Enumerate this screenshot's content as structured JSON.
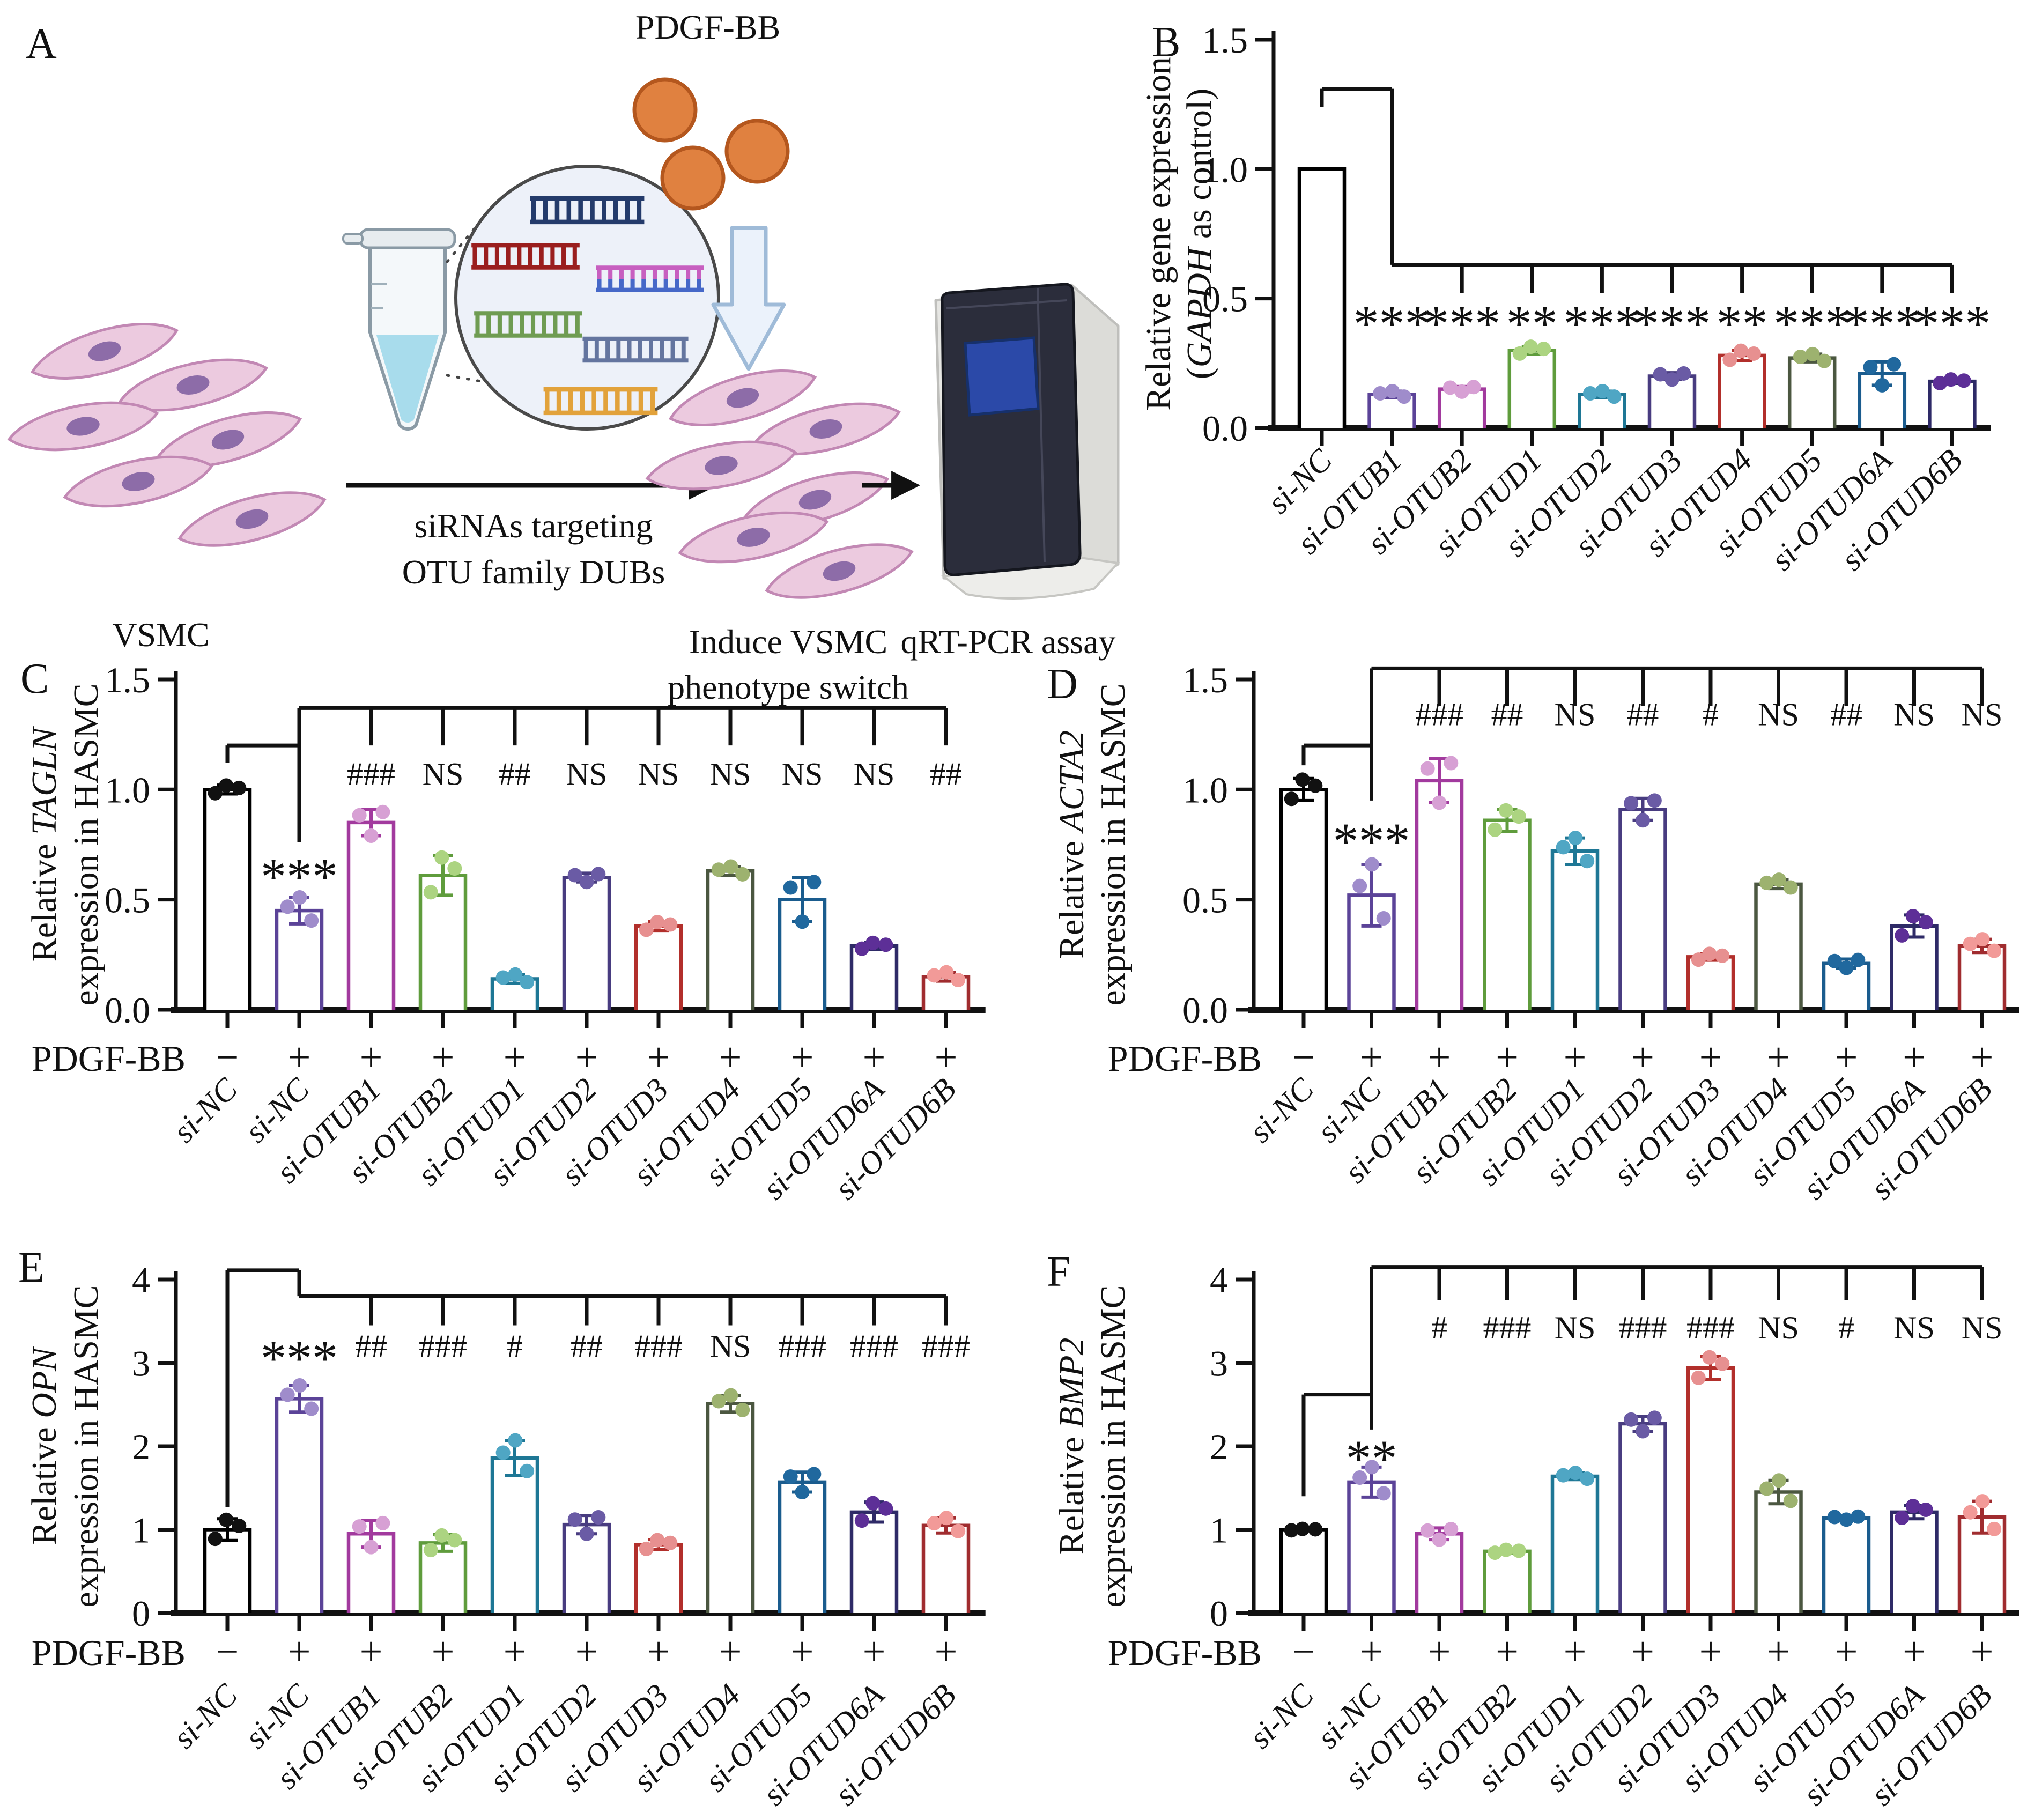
{
  "panel_letters": {
    "A": "A",
    "B": "B",
    "C": "C",
    "D": "D",
    "E": "E",
    "F": "F"
  },
  "panel_a": {
    "pdgf_label": "PDGF-BB",
    "vsmc_label": "VSMC",
    "sirna_line1": "siRNAs targeting",
    "sirna_line2": "OTU family DUBs",
    "induce_line1": "Induce VSMC",
    "induce_line2": "phenotype switch",
    "machine_caption": "qRT-PCR assay"
  },
  "palette": {
    "black": {
      "bar": "#000000",
      "pt": "#111111"
    },
    "purple": {
      "bar": "#5B4398",
      "pt": "#9F8CCB"
    },
    "magenta": {
      "bar": "#A23A9E",
      "pt": "#D7A0D4"
    },
    "green": {
      "bar": "#5F9C3C",
      "pt": "#ACD481"
    },
    "teal": {
      "bar": "#1E7795",
      "pt": "#4FA6C4"
    },
    "violet": {
      "bar": "#483C80",
      "pt": "#6A5BA5"
    },
    "red": {
      "bar": "#B22F2B",
      "pt": "#E79090"
    },
    "olive": {
      "bar": "#4B5740",
      "pt": "#9DB26F"
    },
    "steel": {
      "bar": "#1A5C8E",
      "pt": "#20689E"
    },
    "indigo": {
      "bar": "#2E2A67",
      "pt": "#5D2F97"
    },
    "maroon": {
      "bar": "#A02C2F",
      "pt": "#F29A98"
    }
  },
  "chart_data": [
    {
      "panel": "B",
      "type": "bar",
      "title": "Relative gene expression (GAPDH as control)",
      "ylabel_lines": [
        [
          {
            "t": "Relative gene expression"
          }
        ],
        [
          {
            "t": "("
          },
          {
            "t": "GAPDH",
            "i": true
          },
          {
            "t": " as control)"
          }
        ]
      ],
      "ylim": [
        0,
        1.5
      ],
      "yticks": [
        "0.0",
        "0.5",
        "1.0",
        "1.5"
      ],
      "categories": [
        "si-NC",
        "si-OTUB1",
        "si-OTUB2",
        "si-OTUD1",
        "si-OTUD2",
        "si-OTUD3",
        "si-OTUD4",
        "si-OTUD5",
        "si-OTUD6A",
        "si-OTUD6B"
      ],
      "values": [
        1.0,
        0.13,
        0.15,
        0.3,
        0.13,
        0.2,
        0.28,
        0.27,
        0.21,
        0.18
      ],
      "errors": [
        0,
        0.012,
        0.01,
        0.015,
        0.012,
        0.013,
        0.02,
        0.015,
        0.045,
        0.008
      ],
      "colors": [
        "black",
        "purple",
        "magenta",
        "green",
        "teal",
        "violet",
        "red",
        "olive",
        "steel",
        "indigo"
      ],
      "first_bar_points": false,
      "pdgf_signs": null,
      "sig": [
        null,
        {
          "t": "***",
          "y": 0.45
        },
        {
          "t": "***",
          "y": 0.45
        },
        {
          "t": "**",
          "y": 0.45
        },
        {
          "t": "***",
          "y": 0.45
        },
        {
          "t": "***",
          "y": 0.45
        },
        {
          "t": "**",
          "y": 0.45
        },
        {
          "t": "***",
          "y": 0.45
        },
        {
          "t": "***",
          "y": 0.45
        },
        {
          "t": "***",
          "y": 0.45
        }
      ],
      "bracket": [
        {
          "type": "v",
          "cat": 0,
          "y0": 1.24,
          "y1": 1.31
        },
        {
          "type": "h",
          "y": 1.31,
          "c0": 0,
          "c1": 1
        },
        {
          "type": "v",
          "cat": 1,
          "y0": 0.63,
          "y1": 1.31
        },
        {
          "type": "h",
          "y": 0.63,
          "c0": 1,
          "c1": 9
        },
        {
          "type": "vticks",
          "cats": [
            2,
            3,
            4,
            5,
            6,
            7,
            8,
            9
          ],
          "y0": 0.52,
          "y1": 0.63
        }
      ]
    },
    {
      "panel": "C",
      "type": "bar",
      "title": "Relative TAGLN expression in HASMC",
      "ylabel_lines": [
        [
          {
            "t": "Relative "
          },
          {
            "t": "TAGLN",
            "i": true
          }
        ],
        [
          {
            "t": "expression in HASMC"
          }
        ]
      ],
      "ylim": [
        0,
        1.5
      ],
      "yticks": [
        "0.0",
        "0.5",
        "1.0",
        "1.5"
      ],
      "categories": [
        "si-NC",
        "si-NC",
        "si-OTUB1",
        "si-OTUB2",
        "si-OTUD1",
        "si-OTUD2",
        "si-OTUD3",
        "si-OTUD4",
        "si-OTUD5",
        "si-OTUD6A",
        "si-OTUD6B"
      ],
      "values": [
        1.0,
        0.45,
        0.85,
        0.61,
        0.14,
        0.6,
        0.38,
        0.63,
        0.5,
        0.29,
        0.15
      ],
      "errors": [
        0.02,
        0.06,
        0.06,
        0.09,
        0.02,
        0.02,
        0.02,
        0.02,
        0.1,
        0.015,
        0.02
      ],
      "colors": [
        "black",
        "purple",
        "magenta",
        "green",
        "teal",
        "violet",
        "red",
        "olive",
        "steel",
        "indigo",
        "maroon"
      ],
      "pdgf_label": "PDGF-BB",
      "pdgf_signs": [
        "−",
        "+",
        "+",
        "+",
        "+",
        "+",
        "+",
        "+",
        "+",
        "+",
        "+"
      ],
      "sig": [
        null,
        {
          "t": "***",
          "y": 0.66
        },
        {
          "t": "###",
          "y": 1.07
        },
        {
          "t": "NS",
          "y": 1.07
        },
        {
          "t": "##",
          "y": 1.07
        },
        {
          "t": "NS",
          "y": 1.07
        },
        {
          "t": "NS",
          "y": 1.07
        },
        {
          "t": "NS",
          "y": 1.07
        },
        {
          "t": "NS",
          "y": 1.07
        },
        {
          "t": "NS",
          "y": 1.07
        },
        {
          "t": "##",
          "y": 1.07
        }
      ],
      "bracket": [
        {
          "type": "v",
          "cat": 0,
          "y0": 1.12,
          "y1": 1.2
        },
        {
          "type": "h",
          "y": 1.2,
          "c0": 0,
          "c1": 1
        },
        {
          "type": "v",
          "cat": 1,
          "y0": 0.76,
          "y1": 1.37
        },
        {
          "type": "h",
          "y": 1.37,
          "c0": 1,
          "c1": 10
        },
        {
          "type": "vticks",
          "cats": [
            2,
            3,
            4,
            5,
            6,
            7,
            8,
            9,
            10
          ],
          "y0": 1.2,
          "y1": 1.37
        }
      ]
    },
    {
      "panel": "D",
      "type": "bar",
      "title": "Relative ACTA2 expression in HASMC",
      "ylabel_lines": [
        [
          {
            "t": "Relative "
          },
          {
            "t": "ACTA2",
            "i": true
          }
        ],
        [
          {
            "t": "expression in HASMC"
          }
        ]
      ],
      "ylim": [
        0,
        1.5
      ],
      "yticks": [
        "0.0",
        "0.5",
        "1.0",
        "1.5"
      ],
      "categories": [
        "si-NC",
        "si-NC",
        "si-OTUB1",
        "si-OTUB2",
        "si-OTUD1",
        "si-OTUD2",
        "si-OTUD3",
        "si-OTUD4",
        "si-OTUD5",
        "si-OTUD6A",
        "si-OTUD6B"
      ],
      "values": [
        1.0,
        0.52,
        1.04,
        0.86,
        0.72,
        0.91,
        0.24,
        0.57,
        0.21,
        0.38,
        0.29
      ],
      "errors": [
        0.05,
        0.14,
        0.1,
        0.05,
        0.06,
        0.05,
        0.015,
        0.02,
        0.02,
        0.05,
        0.03
      ],
      "colors": [
        "black",
        "purple",
        "magenta",
        "green",
        "teal",
        "violet",
        "red",
        "olive",
        "steel",
        "indigo",
        "maroon"
      ],
      "pdgf_label": "PDGF-BB",
      "pdgf_signs": [
        "−",
        "+",
        "+",
        "+",
        "+",
        "+",
        "+",
        "+",
        "+",
        "+",
        "+"
      ],
      "sig": [
        null,
        {
          "t": "***",
          "y": 0.82
        },
        {
          "t": "###",
          "y": 1.34
        },
        {
          "t": "##",
          "y": 1.34
        },
        {
          "t": "NS",
          "y": 1.34
        },
        {
          "t": "##",
          "y": 1.34
        },
        {
          "t": "#",
          "y": 1.34
        },
        {
          "t": "NS",
          "y": 1.34
        },
        {
          "t": "##",
          "y": 1.34
        },
        {
          "t": "NS",
          "y": 1.34
        },
        {
          "t": "NS",
          "y": 1.34
        }
      ],
      "bracket": [
        {
          "type": "v",
          "cat": 0,
          "y0": 1.11,
          "y1": 1.2
        },
        {
          "type": "h",
          "y": 1.2,
          "c0": 0,
          "c1": 1
        },
        {
          "type": "v",
          "cat": 1,
          "y0": 0.95,
          "y1": 1.55
        },
        {
          "type": "h",
          "y": 1.55,
          "c0": 1,
          "c1": 10
        },
        {
          "type": "vticks",
          "cats": [
            2,
            3,
            4,
            5,
            6,
            7,
            8,
            9,
            10
          ],
          "y0": 1.38,
          "y1": 1.55
        }
      ]
    },
    {
      "panel": "E",
      "type": "bar",
      "title": "Relative OPN expression in HASMC",
      "ylabel_lines": [
        [
          {
            "t": "Relative "
          },
          {
            "t": "OPN",
            "i": true
          }
        ],
        [
          {
            "t": "expression in HASMC"
          }
        ]
      ],
      "ylim": [
        0,
        4
      ],
      "yticks": [
        "0",
        "1",
        "2",
        "3",
        "4"
      ],
      "categories": [
        "si-NC",
        "si-NC",
        "si-OTUB1",
        "si-OTUB2",
        "si-OTUD1",
        "si-OTUD2",
        "si-OTUD3",
        "si-OTUD4",
        "si-OTUD5",
        "si-OTUD6A",
        "si-OTUD6B"
      ],
      "values": [
        1.0,
        2.57,
        0.95,
        0.84,
        1.86,
        1.06,
        0.82,
        2.51,
        1.57,
        1.21,
        1.05
      ],
      "errors": [
        0.13,
        0.16,
        0.16,
        0.1,
        0.21,
        0.11,
        0.06,
        0.1,
        0.12,
        0.12,
        0.09
      ],
      "colors": [
        "black",
        "purple",
        "magenta",
        "green",
        "teal",
        "violet",
        "red",
        "olive",
        "steel",
        "indigo",
        "maroon"
      ],
      "pdgf_label": "PDGF-BB",
      "pdgf_signs": [
        "−",
        "+",
        "+",
        "+",
        "+",
        "+",
        "+",
        "+",
        "+",
        "+",
        "+"
      ],
      "sig": [
        null,
        {
          "t": "***",
          "y": 3.2
        },
        {
          "t": "##",
          "y": 3.2
        },
        {
          "t": "###",
          "y": 3.2
        },
        {
          "t": "#",
          "y": 3.2
        },
        {
          "t": "##",
          "y": 3.2
        },
        {
          "t": "###",
          "y": 3.2
        },
        {
          "t": "NS",
          "y": 3.2
        },
        {
          "t": "###",
          "y": 3.2
        },
        {
          "t": "###",
          "y": 3.2
        },
        {
          "t": "###",
          "y": 3.2
        }
      ],
      "bracket": [
        {
          "type": "v",
          "cat": 0,
          "y0": 1.27,
          "y1": 4.11
        },
        {
          "type": "h",
          "y": 4.11,
          "c0": 0,
          "c1": 1
        },
        {
          "type": "v",
          "cat": 1,
          "y0": 3.8,
          "y1": 4.11
        },
        {
          "type": "h",
          "y": 3.8,
          "c0": 1,
          "c1": 10
        },
        {
          "type": "vticks",
          "cats": [
            2,
            3,
            4,
            5,
            6,
            7,
            8,
            9,
            10
          ],
          "y0": 3.45,
          "y1": 3.8
        }
      ]
    },
    {
      "panel": "F",
      "type": "bar",
      "title": "Relative BMP2 expression in HASMC",
      "ylabel_lines": [
        [
          {
            "t": "Relative "
          },
          {
            "t": "BMP2",
            "i": true
          }
        ],
        [
          {
            "t": "expression in HASMC"
          }
        ]
      ],
      "ylim": [
        0,
        4
      ],
      "yticks": [
        "0",
        "1",
        "2",
        "3",
        "4"
      ],
      "categories": [
        "si-NC",
        "si-NC",
        "si-OTUB1",
        "si-OTUB2",
        "si-OTUD1",
        "si-OTUD2",
        "si-OTUD3",
        "si-OTUD4",
        "si-OTUD5",
        "si-OTUD6A",
        "si-OTUD6B"
      ],
      "values": [
        1.0,
        1.57,
        0.95,
        0.74,
        1.64,
        2.27,
        2.94,
        1.45,
        1.14,
        1.21,
        1.15
      ],
      "errors": [
        0.01,
        0.18,
        0.07,
        0.02,
        0.04,
        0.09,
        0.14,
        0.14,
        0.02,
        0.08,
        0.19
      ],
      "colors": [
        "black",
        "purple",
        "magenta",
        "green",
        "teal",
        "violet",
        "red",
        "olive",
        "steel",
        "indigo",
        "maroon"
      ],
      "pdgf_label": "PDGF-BB",
      "pdgf_signs": [
        "−",
        "+",
        "+",
        "+",
        "+",
        "+",
        "+",
        "+",
        "+",
        "+",
        "+"
      ],
      "sig": [
        null,
        {
          "t": "**",
          "y": 2.0
        },
        {
          "t": "#",
          "y": 3.42
        },
        {
          "t": "###",
          "y": 3.42
        },
        {
          "t": "NS",
          "y": 3.42
        },
        {
          "t": "###",
          "y": 3.42
        },
        {
          "t": "###",
          "y": 3.42
        },
        {
          "t": "NS",
          "y": 3.42
        },
        {
          "t": "#",
          "y": 3.42
        },
        {
          "t": "NS",
          "y": 3.42
        },
        {
          "t": "NS",
          "y": 3.42
        }
      ],
      "bracket": [
        {
          "type": "v",
          "cat": 0,
          "y0": 1.4,
          "y1": 2.62
        },
        {
          "type": "h",
          "y": 2.62,
          "c0": 0,
          "c1": 1
        },
        {
          "type": "v",
          "cat": 1,
          "y0": 2.2,
          "y1": 4.15
        },
        {
          "type": "h",
          "y": 4.15,
          "c0": 1,
          "c1": 10
        },
        {
          "type": "vticks",
          "cats": [
            2,
            3,
            4,
            5,
            6,
            7,
            8,
            9,
            10
          ],
          "y0": 3.75,
          "y1": 4.15
        }
      ]
    }
  ]
}
